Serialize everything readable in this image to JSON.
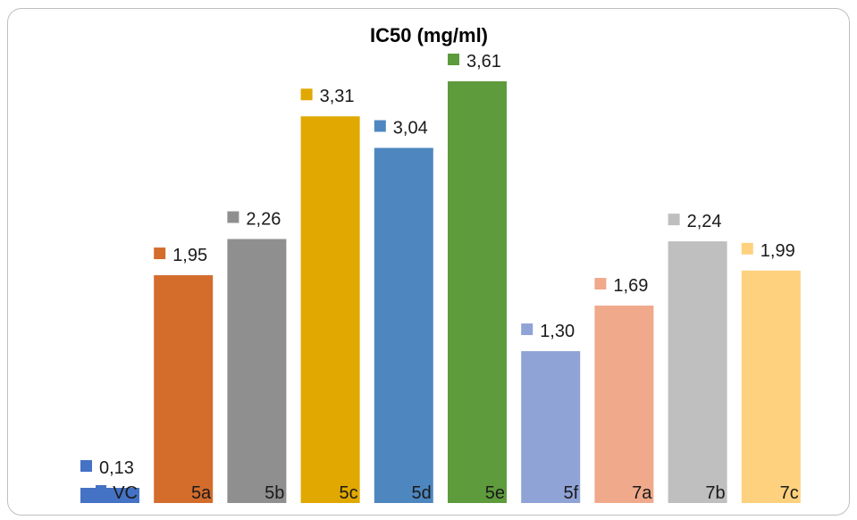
{
  "chart_data": {
    "type": "bar",
    "title": "IC50 (mg/ml)",
    "categories": [
      "VC",
      "5a",
      "5b",
      "5c",
      "5d",
      "5e",
      "5f",
      "7a",
      "7b",
      "7c"
    ],
    "values": [
      0.13,
      1.95,
      2.26,
      3.31,
      3.04,
      3.61,
      1.3,
      1.69,
      2.24,
      1.99
    ],
    "value_labels": [
      "0,13",
      "1,95",
      "2,26",
      "3,31",
      "3,04",
      "3,61",
      "1,30",
      "1,69",
      "2,24",
      "1,99"
    ],
    "colors": [
      "#4472c4",
      "#d46c2c",
      "#8f8f8f",
      "#e0a800",
      "#4e87c0",
      "#5e9b3c",
      "#8fa3d6",
      "#f0a98b",
      "#bfbfbf",
      "#fdd17e"
    ],
    "ylim": [
      0,
      3.61
    ],
    "xlabel": "",
    "ylabel": "",
    "grid": false,
    "legend": "none"
  }
}
